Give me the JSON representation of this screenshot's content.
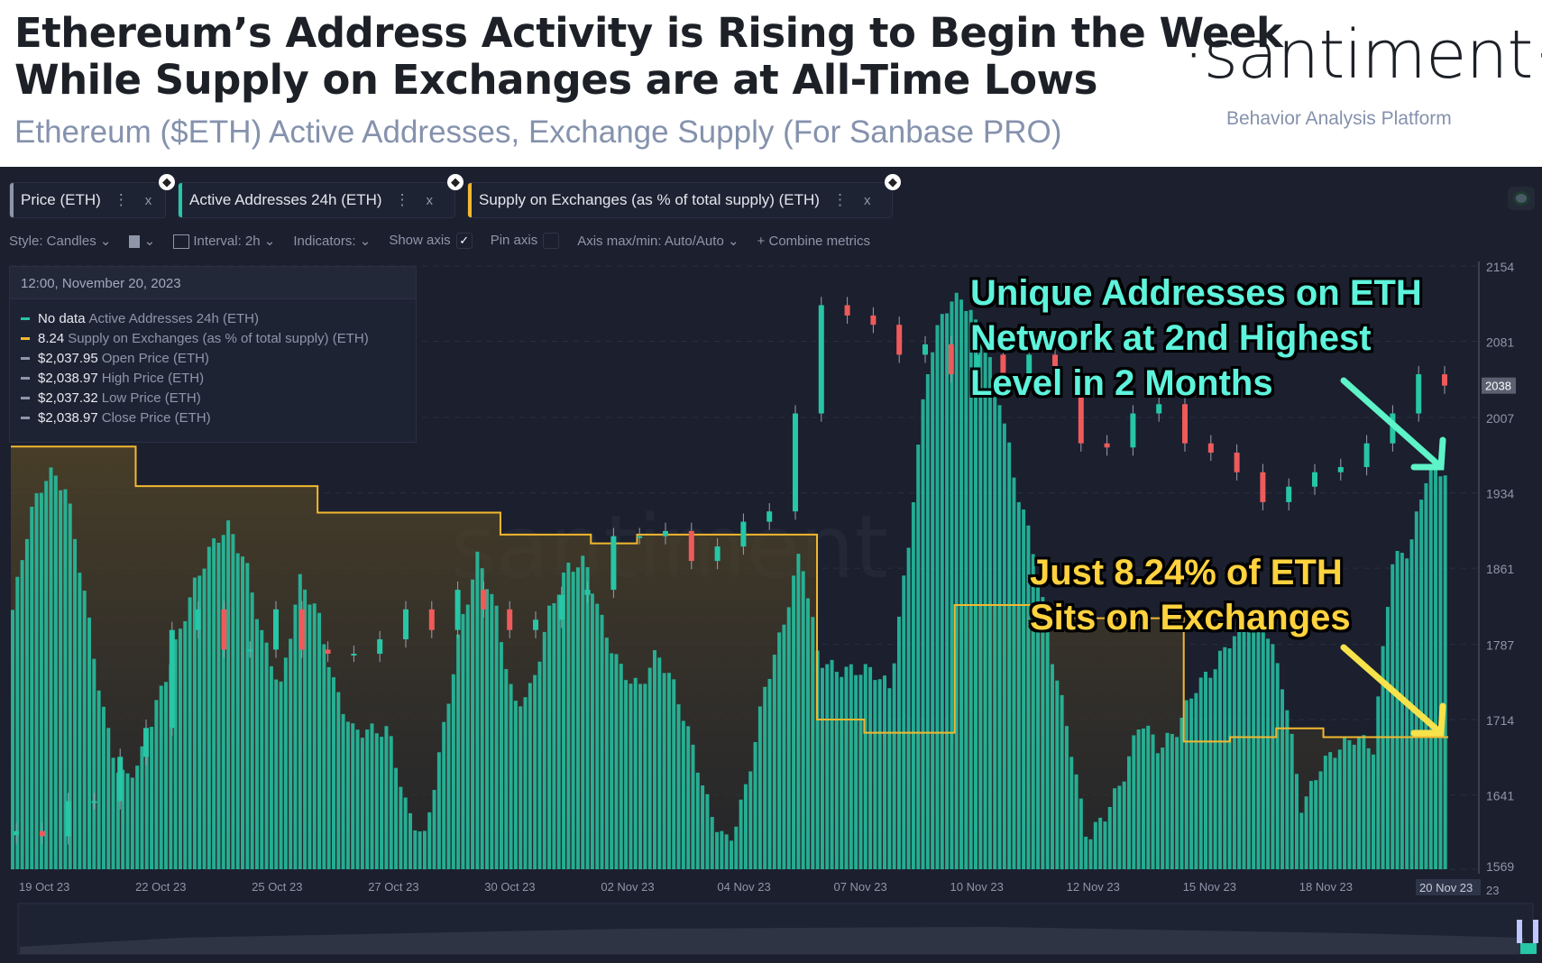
{
  "header": {
    "title_line1": "Ethereum’s Address Activity is Rising to Begin the Week",
    "title_line2": "While Supply on Exchanges are at All-Time Lows",
    "subtitle": "Ethereum ($ETH) Active Addresses, Exchange Supply (For Sanbase PRO)",
    "logo": "·santiment·",
    "tagline": "Behavior Analysis Platform"
  },
  "tabs": [
    {
      "label": "Price (ETH)",
      "color": "#8e96a8"
    },
    {
      "label": "Active Addresses 24h (ETH)",
      "color": "#26c6a6"
    },
    {
      "label": "Supply on Exchanges (as % of total supply) (ETH)",
      "color": "#f2b82f"
    }
  ],
  "tab_menu": "⋮",
  "tab_close": "x",
  "toolbar": {
    "style": "Style: Candles",
    "interval": "Interval: 2h",
    "indicators": "Indicators:",
    "show_axis": "Show axis",
    "show_axis_checked": "✓",
    "pin_axis": "Pin axis",
    "axis_maxmin": "Axis max/min: Auto/Auto",
    "combine": "Combine metrics",
    "chev": "⌄",
    "plus": "+"
  },
  "legend": {
    "date": "12:00, November 20, 2023",
    "rows": [
      {
        "value": "No data",
        "name": "Active Addresses 24h (ETH)",
        "color": "#26c6a6"
      },
      {
        "value": "8.24",
        "name": "Supply on Exchanges (as % of total supply) (ETH)",
        "color": "#f2b82f"
      },
      {
        "value": "$2,037.95",
        "name": "Open Price (ETH)",
        "color": "#8e96a8"
      },
      {
        "value": "$2,038.97",
        "name": "High Price (ETH)",
        "color": "#8e96a8"
      },
      {
        "value": "$2,037.32",
        "name": "Low Price (ETH)",
        "color": "#8e96a8"
      },
      {
        "value": "$2,038.97",
        "name": "Close Price (ETH)",
        "color": "#8e96a8"
      }
    ]
  },
  "annotations": {
    "cyan": [
      "Unique Addresses on ETH",
      "Network at 2nd Highest",
      "Level in 2 Months"
    ],
    "yellow": [
      "Just 8.24% of ETH",
      "Sits on Exchanges"
    ]
  },
  "chart_data": {
    "type": "bar+candles+line",
    "watermark": "santiment",
    "x_ticks": [
      "19 Oct 23",
      "22 Oct 23",
      "25 Oct 23",
      "27 Oct 23",
      "30 Oct 23",
      "02 Nov 23",
      "04 Nov 23",
      "07 Nov 23",
      "10 Nov 23",
      "12 Nov 23",
      "15 Nov 23",
      "18 Nov 23"
    ],
    "x_current_label": "20 Nov 23",
    "x_trailing": "23",
    "y_ticks": [
      2154,
      2081,
      2007,
      1934,
      1861,
      1787,
      1714,
      1641,
      1569
    ],
    "ylim": [
      1569,
      2154
    ],
    "price_current": "2038",
    "price_close": [
      1606,
      1601,
      1635,
      1635,
      1678,
      1706,
      1801,
      1821,
      1782,
      1782,
      1821,
      1782,
      1778,
      1778,
      1792,
      1821,
      1801,
      1840,
      1821,
      1801,
      1811,
      1835,
      1840,
      1892,
      1892,
      1897,
      1868,
      1882,
      1906,
      1916,
      2011,
      2116,
      2106,
      2097,
      2068,
      2078,
      2049,
      2068,
      2049,
      2068,
      2040,
      1982,
      1978,
      2011,
      2020,
      1982,
      1973,
      1954,
      1925,
      1940,
      1954,
      1959,
      1982,
      2011,
      2049,
      2038
    ],
    "active_addresses_relative": [
      43,
      59,
      66,
      63,
      46,
      27,
      15,
      17,
      27,
      36,
      46,
      53,
      57,
      51,
      38,
      30,
      48,
      43,
      30,
      23,
      23,
      23,
      10,
      5,
      22,
      40,
      52,
      43,
      27,
      30,
      43,
      50,
      51,
      40,
      33,
      30,
      36,
      30,
      20,
      9,
      4,
      14,
      30,
      40,
      53,
      35,
      33,
      33,
      33,
      30,
      53,
      82,
      93,
      95,
      89,
      80,
      64,
      53,
      36,
      22,
      5,
      9,
      15,
      25,
      20,
      23,
      30,
      33,
      38,
      41,
      40,
      30,
      10,
      17,
      20,
      22,
      20,
      51,
      53,
      66,
      66
    ],
    "supply_steps": [
      {
        "v": 8.9,
        "w": 127
      },
      {
        "v": 8.81,
        "w": 185
      },
      {
        "v": 8.75,
        "w": 186
      },
      {
        "v": 8.7,
        "w": 92
      },
      {
        "v": 8.68,
        "w": 47
      },
      {
        "v": 8.7,
        "w": 183
      },
      {
        "v": 8.28,
        "w": 48
      },
      {
        "v": 8.25,
        "w": 92
      },
      {
        "v": 8.54,
        "w": 105
      },
      {
        "v": 8.51,
        "w": 128
      },
      {
        "v": 8.23,
        "w": 47
      },
      {
        "v": 8.24,
        "w": 47
      },
      {
        "v": 8.26,
        "w": 48
      },
      {
        "v": 8.24,
        "w": 127
      }
    ],
    "supply_range": [
      7.94,
      9.31
    ]
  },
  "colors": {
    "bg": "#1b1f2e",
    "teal": "#26c6a6",
    "up": "#26c6a6",
    "down": "#ef5a5a",
    "supply": "#f2b82f"
  }
}
